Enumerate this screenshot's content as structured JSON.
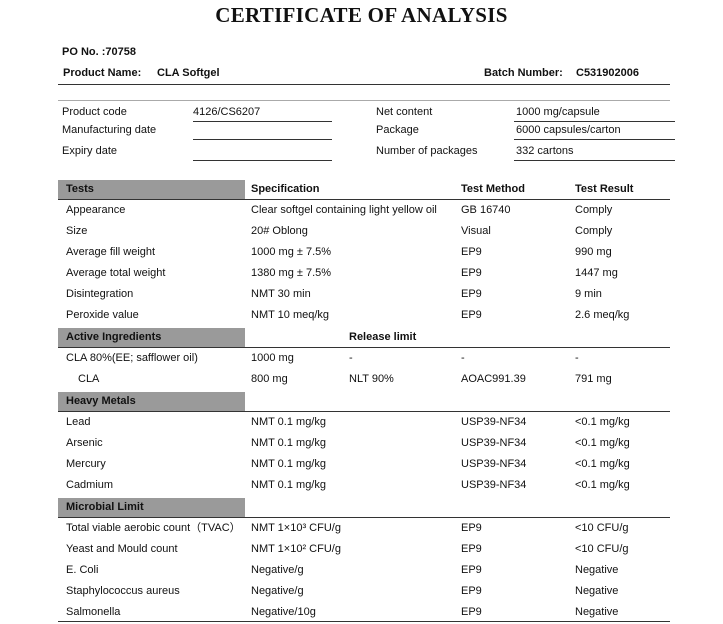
{
  "header": {
    "title": "CERTIFICATE OF ANALYSIS",
    "po_no": "PO No. :70758",
    "product_name_label": "Product Name:",
    "product_name": "CLA Softgel",
    "batch_number_label": "Batch Number:",
    "batch_number": "C531902006"
  },
  "info": {
    "left": [
      {
        "label": "Product code",
        "value": "4126/CS6207"
      },
      {
        "label": "Manufacturing date"
      },
      {
        "label": "Expiry date"
      }
    ],
    "right": [
      {
        "label": "Net content",
        "value": "1000 mg/capsule"
      },
      {
        "label": "Package",
        "value": "6000 capsules/carton"
      },
      {
        "label": "Number of packages",
        "value": "332 cartons"
      }
    ]
  },
  "sections": [
    {
      "title": "Tests",
      "headers": [
        "Specification",
        "Test Method",
        "Test Result"
      ],
      "rows": [
        [
          "Appearance",
          "Clear softgel containing light yellow oil",
          "GB 16740",
          "Comply"
        ],
        [
          "Size",
          "20# Oblong",
          "Visual",
          "Comply"
        ],
        [
          "Average fill weight",
          "1000 mg ± 7.5%",
          "EP9",
          "990 mg"
        ],
        [
          "Average total weight",
          "1380 mg ± 7.5%",
          "EP9",
          "1447 mg"
        ],
        [
          "Disintegration",
          "NMT 30 min",
          "EP9",
          "9 min"
        ],
        [
          "Peroxide value",
          "NMT 10 meq/kg",
          "EP9",
          "2.6 meq/kg"
        ]
      ]
    },
    {
      "title": "Active Ingredients",
      "headers": [
        "Release limit"
      ],
      "rows": [
        [
          "CLA 80%(EE; safflower oil)",
          "1000 mg",
          "-",
          "-",
          "-"
        ],
        [
          "CLA",
          "800 mg",
          "NLT 90%",
          "AOAC991.39",
          "791 mg"
        ]
      ]
    },
    {
      "title": "Heavy Metals",
      "rows": [
        [
          "Lead",
          "NMT 0.1 mg/kg",
          "USP39-NF34",
          "<0.1 mg/kg"
        ],
        [
          "Arsenic",
          "NMT 0.1 mg/kg",
          "USP39-NF34",
          "<0.1 mg/kg"
        ],
        [
          "Mercury",
          "NMT 0.1 mg/kg",
          "USP39-NF34",
          "<0.1 mg/kg"
        ],
        [
          "Cadmium",
          "NMT 0.1 mg/kg",
          "USP39-NF34",
          "<0.1 mg/kg"
        ]
      ]
    },
    {
      "title": "Microbial Limit",
      "rows": [
        [
          "Total viable aerobic count（TVAC）",
          "NMT 1×10³ CFU/g",
          "EP9",
          "<10 CFU/g"
        ],
        [
          "Yeast and Mould count",
          "NMT 1×10² CFU/g",
          "EP9",
          "<10 CFU/g"
        ],
        [
          "E. Coli",
          "Negative/g",
          "EP9",
          "Negative"
        ],
        [
          "Staphylococcus aureus",
          "Negative/g",
          "EP9",
          "Negative"
        ],
        [
          "Salmonella",
          "Negative/10g",
          "EP9",
          "Negative"
        ]
      ]
    }
  ]
}
